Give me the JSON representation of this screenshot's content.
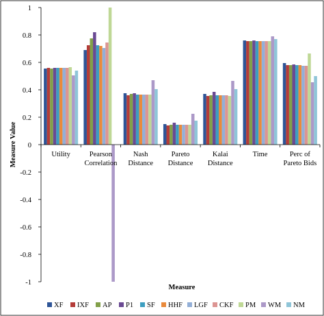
{
  "chart_data": {
    "type": "bar",
    "xlabel": "Measure",
    "ylabel": "Measure Value",
    "ylim": [
      -1,
      1
    ],
    "yticks": [
      "-1",
      "-0.8",
      "-0.6",
      "-0.4",
      "-0.2",
      "0",
      "0.2",
      "0.4",
      "0.6",
      "0.8",
      "1"
    ],
    "ytick_values": [
      -1,
      -0.8,
      -0.6,
      -0.4,
      -0.2,
      0,
      0.2,
      0.4,
      0.6,
      0.8,
      1
    ],
    "grid": false,
    "legend_position": "bottom",
    "categories": [
      [
        "Utility"
      ],
      [
        "Pearson",
        "Correlation"
      ],
      [
        "Nash",
        "Distance"
      ],
      [
        "Pareto",
        "Distance"
      ],
      [
        "Kalai",
        "Distance"
      ],
      [
        "Time"
      ],
      [
        "Perc of",
        "Pareto Bids"
      ]
    ],
    "series": [
      {
        "name": "XF",
        "color": "#2e5597",
        "values": [
          0.555,
          0.69,
          0.375,
          0.15,
          0.37,
          0.76,
          0.595
        ]
      },
      {
        "name": "IXF",
        "color": "#b43c39",
        "values": [
          0.56,
          0.725,
          0.36,
          0.14,
          0.355,
          0.755,
          0.58
        ]
      },
      {
        "name": "AP",
        "color": "#82a04a",
        "values": [
          0.555,
          0.775,
          0.37,
          0.145,
          0.36,
          0.755,
          0.58
        ]
      },
      {
        "name": "P1",
        "color": "#6a4a93",
        "values": [
          0.56,
          0.82,
          0.375,
          0.16,
          0.385,
          0.76,
          0.585
        ]
      },
      {
        "name": "SF",
        "color": "#3d9ec0",
        "values": [
          0.56,
          0.725,
          0.365,
          0.145,
          0.36,
          0.755,
          0.58
        ]
      },
      {
        "name": "HHF",
        "color": "#e98a3c",
        "values": [
          0.56,
          0.72,
          0.365,
          0.145,
          0.36,
          0.755,
          0.58
        ]
      },
      {
        "name": "LGF",
        "color": "#93afd7",
        "values": [
          0.56,
          0.705,
          0.365,
          0.145,
          0.36,
          0.755,
          0.575
        ]
      },
      {
        "name": "CKF",
        "color": "#dc9593",
        "values": [
          0.56,
          0.745,
          0.365,
          0.145,
          0.36,
          0.755,
          0.575
        ]
      },
      {
        "name": "PM",
        "color": "#bfd896",
        "values": [
          0.565,
          1.0,
          0.365,
          0.145,
          0.355,
          0.755,
          0.665
        ]
      },
      {
        "name": "WM",
        "color": "#ac99c8",
        "values": [
          0.505,
          -1.0,
          0.47,
          0.225,
          0.465,
          0.79,
          0.455
        ]
      },
      {
        "name": "NM",
        "color": "#8fc5d8",
        "values": [
          0.54,
          0.0,
          0.405,
          0.175,
          0.405,
          0.77,
          0.5
        ]
      }
    ]
  }
}
